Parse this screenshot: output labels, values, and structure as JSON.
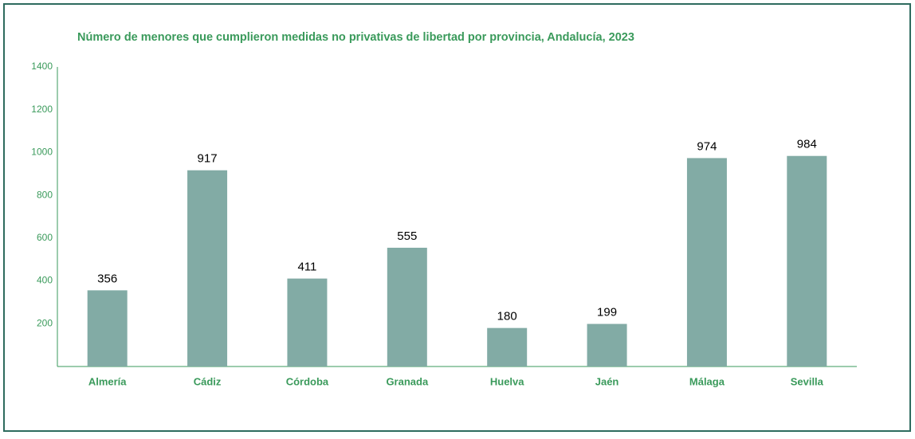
{
  "chart_data": {
    "type": "bar",
    "title": "Número de menores que cumplieron medidas no privativas de libertad por provincia, Andalucía, 2023",
    "categories": [
      "Almería",
      "Cádiz",
      "Córdoba",
      "Granada",
      "Huelva",
      "Jaén",
      "Málaga",
      "Sevilla"
    ],
    "values": [
      356,
      917,
      411,
      555,
      180,
      199,
      974,
      984
    ],
    "color": "#82aba5",
    "ylim": [
      0,
      1400
    ],
    "yticks": [
      200,
      400,
      600,
      800,
      1000,
      1200,
      1400
    ],
    "grid": false
  }
}
